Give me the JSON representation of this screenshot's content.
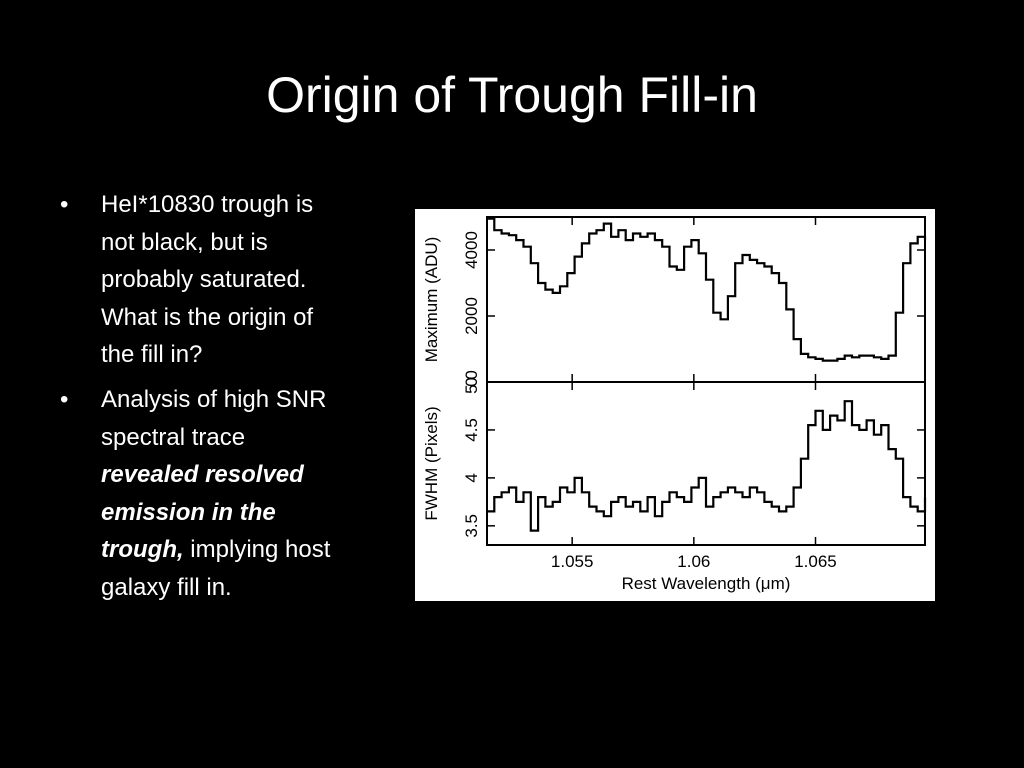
{
  "slide": {
    "title": "Origin of Trough Fill-in",
    "bullets": [
      {
        "parts": [
          {
            "text": "HeI*10830 trough is not black, but is probably saturated.  What is the origin of the fill in?",
            "style": "normal"
          }
        ]
      },
      {
        "parts": [
          {
            "text": "Analysis of high SNR spectral trace ",
            "style": "normal"
          },
          {
            "text": "revealed resolved emission in the trough,",
            "style": "bold-italic"
          },
          {
            "text": " implying host galaxy fill in.",
            "style": "normal"
          }
        ]
      }
    ],
    "bullet_symbol": "•"
  },
  "chart_data": {
    "type": "line",
    "line_style": "step",
    "xlabel": "Rest Wavelength (μm)",
    "xlim": [
      1.0515,
      1.0695
    ],
    "xticks": [
      1.055,
      1.06,
      1.065
    ],
    "xtick_labels": [
      "1.055",
      "1.06",
      "1.065"
    ],
    "panels": [
      {
        "ylabel": "Maximum (ADU)",
        "ylim": [
          0,
          5000
        ],
        "yticks": [
          0,
          2000,
          4000
        ],
        "ytick_labels": [
          "0",
          "2000",
          "4000"
        ],
        "x": [
          1.0515,
          1.0518,
          1.0521,
          1.0524,
          1.0527,
          1.053,
          1.0533,
          1.0536,
          1.0539,
          1.0542,
          1.0545,
          1.0548,
          1.0551,
          1.0554,
          1.0557,
          1.056,
          1.0563,
          1.0566,
          1.0569,
          1.0572,
          1.0575,
          1.0578,
          1.0581,
          1.0584,
          1.0587,
          1.059,
          1.0593,
          1.0596,
          1.0599,
          1.0602,
          1.0605,
          1.0608,
          1.0611,
          1.0614,
          1.0617,
          1.062,
          1.0623,
          1.0626,
          1.0629,
          1.0632,
          1.0635,
          1.0638,
          1.0641,
          1.0644,
          1.0647,
          1.065,
          1.0653,
          1.0656,
          1.0659,
          1.0662,
          1.0665,
          1.0668,
          1.0671,
          1.0674,
          1.0677,
          1.068,
          1.0683,
          1.0686,
          1.0689,
          1.0692,
          1.0695
        ],
        "values": [
          4950,
          4600,
          4500,
          4450,
          4300,
          4100,
          3600,
          3000,
          2800,
          2700,
          2900,
          3300,
          3800,
          4200,
          4500,
          4600,
          4800,
          4400,
          4600,
          4300,
          4500,
          4400,
          4500,
          4300,
          4100,
          3500,
          3400,
          4100,
          4300,
          3900,
          3100,
          2100,
          1900,
          2600,
          3600,
          3850,
          3700,
          3600,
          3500,
          3300,
          3000,
          2200,
          1300,
          850,
          750,
          700,
          650,
          650,
          700,
          800,
          750,
          800,
          800,
          750,
          700,
          800,
          2100,
          3600,
          4200,
          4400,
          4300
        ]
      },
      {
        "ylabel": "FWHM (Pixels)",
        "ylim": [
          3.3,
          5.0
        ],
        "yticks": [
          3.5,
          4,
          4.5,
          5
        ],
        "ytick_labels": [
          "3.5",
          "4",
          "4.5",
          "5 0"
        ],
        "x": [
          1.0515,
          1.0518,
          1.0521,
          1.0524,
          1.0527,
          1.053,
          1.0533,
          1.0536,
          1.0539,
          1.0542,
          1.0545,
          1.0548,
          1.0551,
          1.0554,
          1.0557,
          1.056,
          1.0563,
          1.0566,
          1.0569,
          1.0572,
          1.0575,
          1.0578,
          1.0581,
          1.0584,
          1.0587,
          1.059,
          1.0593,
          1.0596,
          1.0599,
          1.0602,
          1.0605,
          1.0608,
          1.0611,
          1.0614,
          1.0617,
          1.062,
          1.0623,
          1.0626,
          1.0629,
          1.0632,
          1.0635,
          1.0638,
          1.0641,
          1.0644,
          1.0647,
          1.065,
          1.0653,
          1.0656,
          1.0659,
          1.0662,
          1.0665,
          1.0668,
          1.0671,
          1.0674,
          1.0677,
          1.068,
          1.0683,
          1.0686,
          1.0689,
          1.0692,
          1.0695
        ],
        "values": [
          3.65,
          3.8,
          3.85,
          3.9,
          3.75,
          3.85,
          3.45,
          3.8,
          3.7,
          3.75,
          3.9,
          3.85,
          4.0,
          3.85,
          3.7,
          3.65,
          3.6,
          3.75,
          3.8,
          3.7,
          3.75,
          3.65,
          3.8,
          3.6,
          3.75,
          3.85,
          3.8,
          3.75,
          3.9,
          4.0,
          3.7,
          3.8,
          3.85,
          3.9,
          3.85,
          3.8,
          3.9,
          3.85,
          3.75,
          3.7,
          3.65,
          3.7,
          3.9,
          4.2,
          4.55,
          4.7,
          4.5,
          4.65,
          4.6,
          4.8,
          4.55,
          4.5,
          4.6,
          4.45,
          4.55,
          4.3,
          4.2,
          3.8,
          3.7,
          3.65,
          3.8
        ]
      }
    ]
  }
}
